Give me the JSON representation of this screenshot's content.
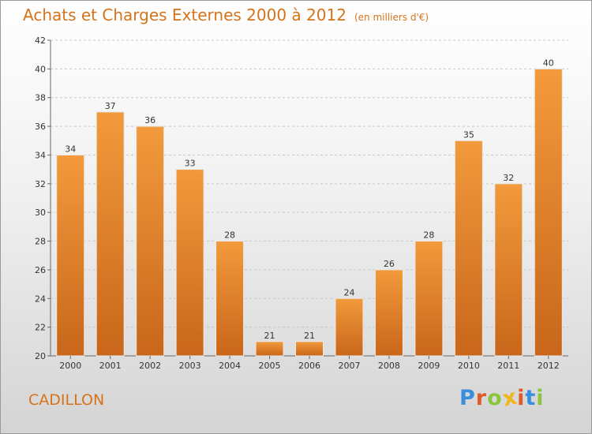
{
  "chart_data": {
    "type": "bar",
    "title": "Achats et Charges Externes 2000 à 2012",
    "unit": "(en milliers d'€)",
    "categories": [
      "2000",
      "2001",
      "2002",
      "2003",
      "2004",
      "2005",
      "2006",
      "2007",
      "2008",
      "2009",
      "2010",
      "2011",
      "2012"
    ],
    "values": [
      34,
      37,
      36,
      33,
      28,
      21,
      21,
      24,
      26,
      28,
      35,
      32,
      40
    ],
    "ylim": [
      20,
      42
    ],
    "yticks": [
      20,
      22,
      24,
      26,
      28,
      30,
      32,
      34,
      36,
      38,
      40,
      42
    ],
    "grid": true,
    "bar_color": "#f29a3c"
  },
  "location": "CADILLON",
  "logo": {
    "letters": [
      "P",
      "r",
      "o",
      "x",
      "i",
      "t",
      "i"
    ],
    "colors": [
      "#3a8ede",
      "#e05a2a",
      "#8bc53f",
      "#f3b51c",
      "#e05a2a",
      "#3a8ede",
      "#8bc53f"
    ]
  }
}
